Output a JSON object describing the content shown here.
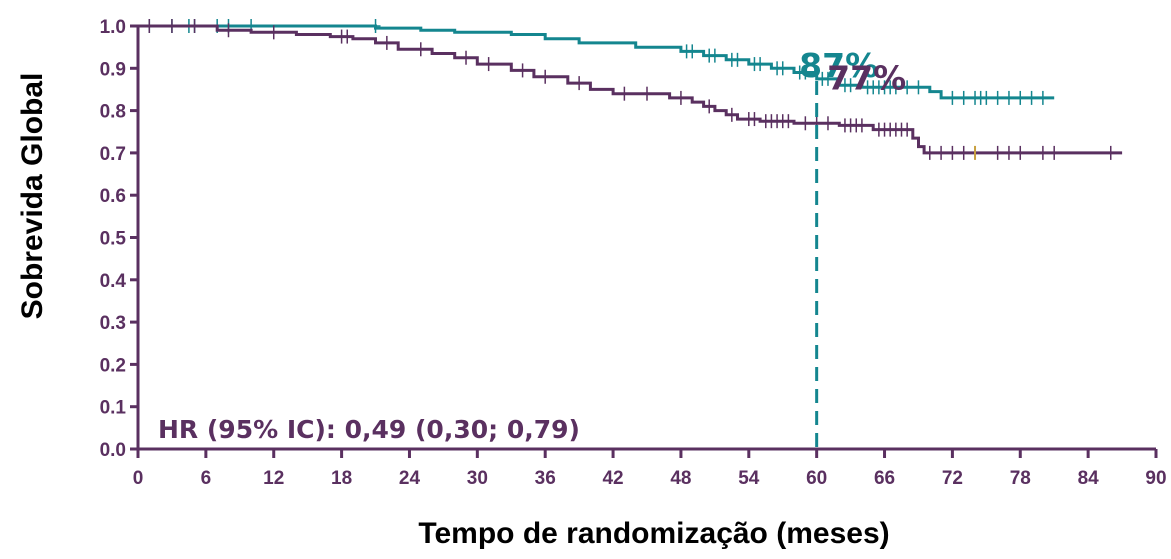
{
  "chart_data": {
    "type": "line",
    "title": "",
    "xlabel": "Tempo de randomização (meses)",
    "ylabel": "Sobrevida Global",
    "xlim": [
      0,
      90
    ],
    "ylim": [
      0,
      1
    ],
    "x_ticks": [
      "0",
      "6",
      "12",
      "18",
      "24",
      "30",
      "36",
      "42",
      "48",
      "54",
      "60",
      "66",
      "72",
      "78",
      "84",
      "90"
    ],
    "y_ticks": [
      "0.0",
      "0.1",
      "0.2",
      "0.3",
      "0.4",
      "0.5",
      "0.6",
      "0.7",
      "0.8",
      "0.9",
      "1.0"
    ],
    "grid": false,
    "colors": {
      "teal": "#14868f",
      "purple": "#5a3060",
      "axis": "#5a3060",
      "censor_highlight": "#c8a040"
    },
    "reference_line_x": 60,
    "hr_note": "HR (95% IC): 0,49 (0,30; 0,79)",
    "annotations": [
      {
        "text": "87%",
        "x": 60,
        "y": 0.87,
        "series": 0
      },
      {
        "text": "77%",
        "x": 60,
        "y": 0.77,
        "series": 1
      }
    ],
    "series": [
      {
        "color": "#14868f",
        "points": [
          [
            0,
            1.0
          ],
          [
            21,
            1.0
          ],
          [
            21,
            0.995
          ],
          [
            25,
            0.995
          ],
          [
            25,
            0.99
          ],
          [
            28,
            0.99
          ],
          [
            28,
            0.985
          ],
          [
            33,
            0.985
          ],
          [
            33,
            0.98
          ],
          [
            36,
            0.98
          ],
          [
            36,
            0.97
          ],
          [
            39,
            0.97
          ],
          [
            39,
            0.96
          ],
          [
            44,
            0.96
          ],
          [
            44,
            0.95
          ],
          [
            48,
            0.95
          ],
          [
            48,
            0.94
          ],
          [
            50,
            0.94
          ],
          [
            50,
            0.93
          ],
          [
            52,
            0.93
          ],
          [
            52,
            0.92
          ],
          [
            54,
            0.92
          ],
          [
            54,
            0.91
          ],
          [
            56,
            0.91
          ],
          [
            56,
            0.9
          ],
          [
            58,
            0.9
          ],
          [
            58,
            0.89
          ],
          [
            60,
            0.89
          ],
          [
            60,
            0.875
          ],
          [
            62,
            0.875
          ],
          [
            62,
            0.86
          ],
          [
            64,
            0.86
          ],
          [
            64,
            0.855
          ],
          [
            70,
            0.855
          ],
          [
            70,
            0.845
          ],
          [
            71,
            0.845
          ],
          [
            71,
            0.83
          ],
          [
            81,
            0.83
          ]
        ],
        "censors": [
          [
            1,
            1.0
          ],
          [
            3,
            1.0
          ],
          [
            4.5,
            1.0
          ],
          [
            5,
            1.0
          ],
          [
            7,
            1.0
          ],
          [
            8,
            1.0
          ],
          [
            10,
            1.0
          ],
          [
            21,
            1.0
          ],
          [
            48.5,
            0.94
          ],
          [
            49,
            0.94
          ],
          [
            50.5,
            0.93
          ],
          [
            51,
            0.93
          ],
          [
            52.5,
            0.92
          ],
          [
            53,
            0.92
          ],
          [
            54.5,
            0.91
          ],
          [
            55,
            0.91
          ],
          [
            56.5,
            0.9
          ],
          [
            57,
            0.9
          ],
          [
            58.5,
            0.89
          ],
          [
            59,
            0.89
          ],
          [
            60.5,
            0.875
          ],
          [
            61,
            0.875
          ],
          [
            62.5,
            0.86
          ],
          [
            63,
            0.86
          ],
          [
            64.5,
            0.855
          ],
          [
            65,
            0.855
          ],
          [
            65.5,
            0.855
          ],
          [
            66,
            0.855
          ],
          [
            66.5,
            0.855
          ],
          [
            67,
            0.855
          ],
          [
            68,
            0.855
          ],
          [
            69,
            0.855
          ],
          [
            72,
            0.83
          ],
          [
            73,
            0.83
          ],
          [
            74,
            0.83
          ],
          [
            74.5,
            0.83
          ],
          [
            75,
            0.83
          ],
          [
            76,
            0.83
          ],
          [
            77,
            0.83
          ],
          [
            78,
            0.83
          ],
          [
            79,
            0.83
          ],
          [
            80,
            0.83
          ]
        ]
      },
      {
        "color": "#5a3060",
        "points": [
          [
            0,
            1.0
          ],
          [
            7,
            1.0
          ],
          [
            7,
            0.99
          ],
          [
            10,
            0.99
          ],
          [
            10,
            0.985
          ],
          [
            14,
            0.985
          ],
          [
            14,
            0.98
          ],
          [
            17,
            0.98
          ],
          [
            17,
            0.975
          ],
          [
            19,
            0.975
          ],
          [
            19,
            0.97
          ],
          [
            21,
            0.97
          ],
          [
            21,
            0.96
          ],
          [
            23,
            0.96
          ],
          [
            23,
            0.945
          ],
          [
            26,
            0.945
          ],
          [
            26,
            0.935
          ],
          [
            28,
            0.935
          ],
          [
            28,
            0.925
          ],
          [
            30,
            0.925
          ],
          [
            30,
            0.91
          ],
          [
            33,
            0.91
          ],
          [
            33,
            0.895
          ],
          [
            35,
            0.895
          ],
          [
            35,
            0.88
          ],
          [
            38,
            0.88
          ],
          [
            38,
            0.865
          ],
          [
            40,
            0.865
          ],
          [
            40,
            0.85
          ],
          [
            42,
            0.85
          ],
          [
            42,
            0.84
          ],
          [
            47,
            0.84
          ],
          [
            47,
            0.83
          ],
          [
            49,
            0.83
          ],
          [
            49,
            0.82
          ],
          [
            50,
            0.82
          ],
          [
            50,
            0.81
          ],
          [
            51,
            0.81
          ],
          [
            51,
            0.8
          ],
          [
            52,
            0.8
          ],
          [
            52,
            0.79
          ],
          [
            53,
            0.79
          ],
          [
            53,
            0.78
          ],
          [
            55,
            0.78
          ],
          [
            55,
            0.775
          ],
          [
            58,
            0.775
          ],
          [
            58,
            0.77
          ],
          [
            62,
            0.77
          ],
          [
            62,
            0.765
          ],
          [
            65,
            0.765
          ],
          [
            65,
            0.755
          ],
          [
            68.5,
            0.755
          ],
          [
            68.5,
            0.735
          ],
          [
            69,
            0.735
          ],
          [
            69,
            0.715
          ],
          [
            69.5,
            0.715
          ],
          [
            69.5,
            0.7
          ],
          [
            87,
            0.7
          ]
        ],
        "censors": [
          [
            1,
            1.0
          ],
          [
            3,
            1.0
          ],
          [
            5,
            1.0
          ],
          [
            8,
            0.99
          ],
          [
            12,
            0.985
          ],
          [
            18,
            0.975
          ],
          [
            18.5,
            0.975
          ],
          [
            22,
            0.96
          ],
          [
            25,
            0.945
          ],
          [
            29,
            0.925
          ],
          [
            31,
            0.91
          ],
          [
            34,
            0.895
          ],
          [
            36,
            0.88
          ],
          [
            39,
            0.865
          ],
          [
            43,
            0.84
          ],
          [
            45,
            0.84
          ],
          [
            48,
            0.83
          ],
          [
            50.5,
            0.81
          ],
          [
            52.5,
            0.79
          ],
          [
            54,
            0.78
          ],
          [
            54.5,
            0.78
          ],
          [
            55.5,
            0.775
          ],
          [
            56,
            0.775
          ],
          [
            56.5,
            0.775
          ],
          [
            57,
            0.775
          ],
          [
            57.5,
            0.775
          ],
          [
            59,
            0.77
          ],
          [
            60,
            0.77
          ],
          [
            61,
            0.77
          ],
          [
            62.5,
            0.765
          ],
          [
            63,
            0.765
          ],
          [
            63.5,
            0.765
          ],
          [
            64,
            0.765
          ],
          [
            65.5,
            0.755
          ],
          [
            66,
            0.755
          ],
          [
            66.5,
            0.755
          ],
          [
            67,
            0.755
          ],
          [
            67.5,
            0.755
          ],
          [
            68,
            0.755
          ],
          [
            70,
            0.7
          ],
          [
            71,
            0.7
          ],
          [
            72,
            0.7
          ],
          [
            73,
            0.7
          ],
          [
            76,
            0.7
          ],
          [
            77,
            0.7
          ],
          [
            78,
            0.7
          ],
          [
            80,
            0.7
          ],
          [
            81,
            0.7
          ],
          [
            86,
            0.7
          ]
        ],
        "highlight_censor": [
          74,
          0.7
        ]
      }
    ]
  }
}
